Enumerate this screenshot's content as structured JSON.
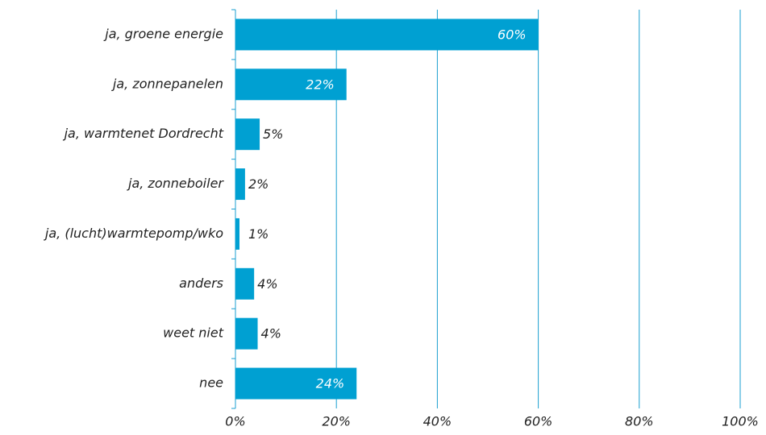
{
  "chart_data": {
    "type": "barh",
    "categories": [
      "ja, groene energie",
      "ja, zonnepanelen",
      "ja, warmtenet Dordrecht",
      "ja, zonneboiler",
      "ja, (lucht)warmtepomp/wko",
      "anders",
      "weet niet",
      "nee"
    ],
    "values": [
      60,
      22,
      4.8,
      1.9,
      0.8,
      3.7,
      4.4,
      24
    ],
    "value_labels": [
      "60%",
      "22%",
      "5%",
      "2%",
      "1%",
      "4%",
      "4%",
      "24%"
    ],
    "color": "#00a0d2",
    "xlim": [
      0,
      100
    ],
    "xticks": [
      {
        "value": 0,
        "label": "0%"
      },
      {
        "value": 20,
        "label": "20%"
      },
      {
        "value": 40,
        "label": "40%"
      },
      {
        "value": 60,
        "label": "60%"
      },
      {
        "value": 80,
        "label": "80%"
      },
      {
        "value": 100,
        "label": "100%"
      }
    ],
    "grid": true
  }
}
